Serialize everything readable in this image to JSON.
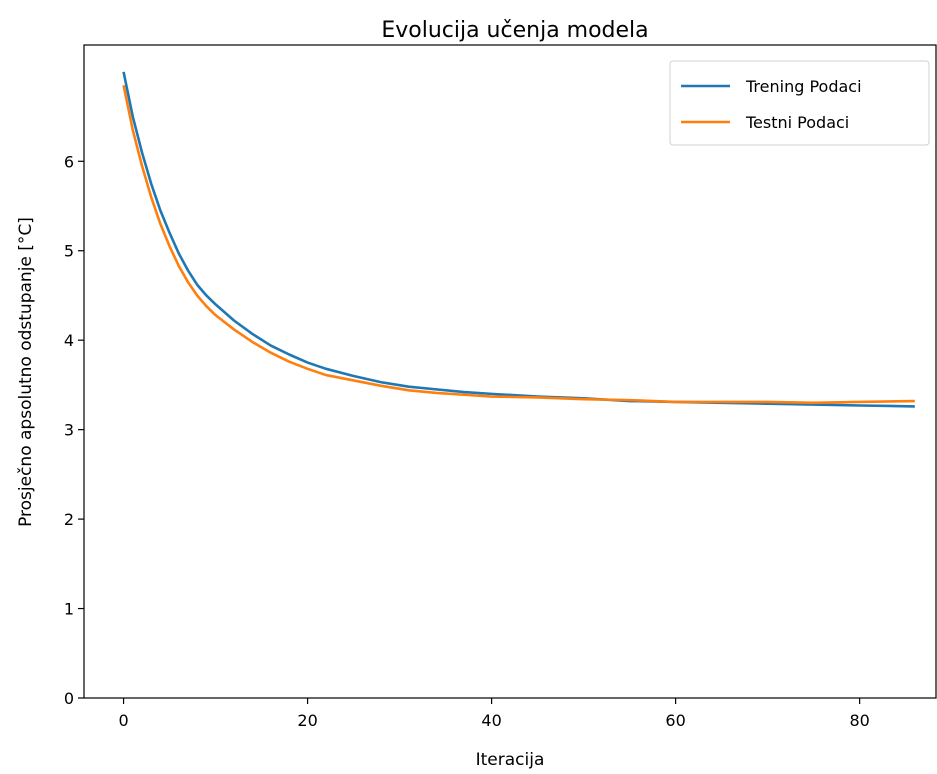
{
  "chart_data": {
    "type": "line",
    "title": "Evolucija učenja modela",
    "xlabel": "Iteracija",
    "ylabel": "Prosječno apsolutno odstupanje [°C]",
    "xlim": [
      -4.3,
      88.3
    ],
    "ylim": [
      0,
      7.3
    ],
    "xticks": [
      0,
      20,
      40,
      60,
      80
    ],
    "yticks": [
      0,
      1,
      2,
      3,
      4,
      5,
      6
    ],
    "grid": false,
    "legend_position": "top-right",
    "x": [
      0,
      1,
      2,
      3,
      4,
      5,
      6,
      7,
      8,
      9,
      10,
      12,
      14,
      16,
      18,
      20,
      22,
      25,
      28,
      31,
      34,
      37,
      40,
      45,
      50,
      55,
      60,
      65,
      70,
      75,
      80,
      86
    ],
    "series": [
      {
        "name": "Trening Podaci",
        "color": "#1f77b4",
        "values": [
          7.0,
          6.5,
          6.1,
          5.75,
          5.45,
          5.2,
          4.97,
          4.78,
          4.62,
          4.5,
          4.4,
          4.22,
          4.07,
          3.94,
          3.84,
          3.75,
          3.68,
          3.6,
          3.53,
          3.48,
          3.45,
          3.42,
          3.4,
          3.37,
          3.35,
          3.32,
          3.31,
          3.3,
          3.29,
          3.28,
          3.27,
          3.26
        ]
      },
      {
        "name": "Testni Podaci",
        "color": "#ff7f0e",
        "values": [
          6.85,
          6.35,
          5.95,
          5.6,
          5.3,
          5.05,
          4.83,
          4.65,
          4.5,
          4.38,
          4.28,
          4.12,
          3.98,
          3.86,
          3.76,
          3.68,
          3.61,
          3.55,
          3.49,
          3.44,
          3.41,
          3.39,
          3.37,
          3.36,
          3.34,
          3.33,
          3.31,
          3.31,
          3.31,
          3.3,
          3.31,
          3.32
        ]
      }
    ]
  }
}
